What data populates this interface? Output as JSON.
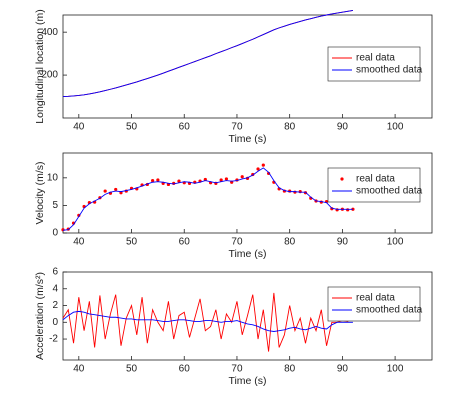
{
  "chart_data": [
    {
      "type": "line",
      "xlabel": "Time (s)",
      "ylabel": "Longitudinal location (m)",
      "xlim": [
        37,
        107
      ],
      "xticks": [
        40,
        50,
        60,
        70,
        80,
        90,
        100
      ],
      "ylim": [
        0,
        480
      ],
      "yticks": [
        200,
        400
      ],
      "legend": "upper right",
      "x": [
        37,
        38,
        39,
        40,
        41,
        42,
        43,
        44,
        45,
        46,
        47,
        48,
        49,
        50,
        51,
        52,
        53,
        54,
        55,
        56,
        57,
        58,
        59,
        60,
        61,
        62,
        63,
        64,
        65,
        66,
        67,
        68,
        69,
        70,
        71,
        72,
        73,
        74,
        75,
        76,
        77,
        78,
        79,
        80,
        81,
        82,
        83,
        84,
        85,
        86,
        87,
        88,
        89,
        90,
        91,
        92
      ],
      "series": [
        {
          "name": "real data",
          "color": "#ff0000",
          "style": "line",
          "values": [
            100,
            101,
            103,
            105,
            108,
            112,
            117,
            122,
            128,
            134,
            140,
            147,
            154,
            161,
            168,
            176,
            184,
            192,
            200,
            209,
            218,
            227,
            236,
            245,
            254,
            263,
            272,
            281,
            290,
            300,
            309,
            318,
            328,
            337,
            347,
            357,
            367,
            378,
            389,
            400,
            411,
            420,
            428,
            436,
            443,
            450,
            457,
            463,
            469,
            475,
            480,
            485,
            489,
            493,
            497,
            501
          ]
        },
        {
          "name": "smoothed data",
          "color": "#0000ff",
          "style": "line",
          "values": [
            100,
            101,
            103,
            105,
            108,
            112,
            117,
            122,
            128,
            134,
            140,
            147,
            154,
            161,
            168,
            176,
            184,
            192,
            200,
            209,
            218,
            227,
            236,
            245,
            254,
            263,
            272,
            281,
            290,
            300,
            309,
            318,
            328,
            337,
            347,
            357,
            367,
            378,
            389,
            400,
            411,
            420,
            428,
            436,
            443,
            450,
            457,
            463,
            469,
            475,
            480,
            485,
            489,
            493,
            497,
            501
          ]
        }
      ]
    },
    {
      "type": "line",
      "xlabel": "Time (s)",
      "ylabel": "Velocity (m/s)",
      "xlim": [
        37,
        107
      ],
      "xticks": [
        40,
        50,
        60,
        70,
        80,
        90,
        100
      ],
      "ylim": [
        0,
        14.5
      ],
      "yticks": [
        0,
        5,
        10
      ],
      "legend": "upper right",
      "x": [
        37,
        38,
        39,
        40,
        41,
        42,
        43,
        44,
        45,
        46,
        47,
        48,
        49,
        50,
        51,
        52,
        53,
        54,
        55,
        56,
        57,
        58,
        59,
        60,
        61,
        62,
        63,
        64,
        65,
        66,
        67,
        68,
        69,
        70,
        71,
        72,
        73,
        74,
        75,
        76,
        77,
        78,
        79,
        80,
        81,
        82,
        83,
        84,
        85,
        86,
        87,
        88,
        89,
        90,
        91,
        92
      ],
      "series": [
        {
          "name": "real data",
          "color": "#ff0000",
          "style": "markers",
          "values": [
            0.6,
            0.7,
            1.8,
            3.2,
            4.8,
            5.5,
            5.6,
            6.4,
            7.6,
            7.2,
            7.9,
            7.3,
            7.6,
            8.1,
            8.0,
            8.7,
            8.8,
            9.5,
            9.6,
            9.0,
            8.8,
            9.0,
            9.4,
            9.1,
            9.0,
            9.2,
            9.4,
            9.7,
            9.1,
            9.0,
            9.6,
            9.8,
            9.2,
            9.6,
            10.2,
            9.9,
            10.6,
            11.6,
            12.3,
            10.8,
            9.2,
            8.0,
            7.6,
            7.6,
            7.4,
            7.5,
            7.3,
            6.3,
            5.8,
            5.6,
            5.7,
            4.4,
            4.2,
            4.3,
            4.2,
            4.3
          ]
        },
        {
          "name": "smoothed data",
          "color": "#0000ff",
          "style": "line",
          "values": [
            0.5,
            0.6,
            1.5,
            3,
            4.5,
            5.3,
            5.8,
            6.3,
            7,
            7.4,
            7.6,
            7.5,
            7.7,
            7.9,
            8.2,
            8.5,
            8.9,
            9.2,
            9.3,
            9.2,
            9,
            8.9,
            9.1,
            9.3,
            9.2,
            9,
            9.2,
            9.5,
            9.3,
            9.1,
            9.3,
            9.5,
            9.4,
            9.5,
            9.8,
            10,
            10.5,
            11.2,
            11.8,
            11,
            9.5,
            8.2,
            7.7,
            7.5,
            7.5,
            7.4,
            7.4,
            6.5,
            5.8,
            5.7,
            5.5,
            4.5,
            4.3,
            4.3,
            4.3,
            4.3
          ]
        }
      ]
    },
    {
      "type": "line",
      "xlabel": "Time (s)",
      "ylabel": "Acceleration (m/s²)",
      "xlim": [
        37,
        107
      ],
      "xticks": [
        40,
        50,
        60,
        70,
        80,
        90,
        100
      ],
      "ylim": [
        -4.5,
        6
      ],
      "yticks": [
        -2,
        0,
        2,
        4,
        6
      ],
      "legend": "upper right",
      "x": [
        37,
        38,
        39,
        40,
        41,
        42,
        43,
        44,
        45,
        46,
        47,
        48,
        49,
        50,
        51,
        52,
        53,
        54,
        55,
        56,
        57,
        58,
        59,
        60,
        61,
        62,
        63,
        64,
        65,
        66,
        67,
        68,
        69,
        70,
        71,
        72,
        73,
        74,
        75,
        76,
        77,
        78,
        79,
        80,
        81,
        82,
        83,
        84,
        85,
        86,
        87,
        88,
        89,
        90,
        91,
        92
      ],
      "series": [
        {
          "name": "real data",
          "color": "#ff0000",
          "style": "line",
          "values": [
            0.5,
            1.5,
            -2.5,
            3,
            -1,
            2.5,
            -3,
            3.2,
            -2,
            1,
            3.3,
            -2.8,
            0.5,
            2,
            -1.5,
            3,
            -2.5,
            1.5,
            0,
            -1,
            2.5,
            -2,
            0.8,
            1.2,
            -1.8,
            0.5,
            2.8,
            -1,
            -0.5,
            1.5,
            -2,
            1,
            0,
            2.5,
            -1.5,
            0.8,
            3.3,
            -2,
            1.5,
            -3.5,
            3.5,
            -3,
            -1.5,
            2,
            -1,
            0.5,
            -2.5,
            0.5,
            -1,
            1.5,
            -2.8,
            0,
            0,
            0.2,
            0.1,
            0.6
          ]
        },
        {
          "name": "smoothed data",
          "color": "#0000ff",
          "style": "line",
          "values": [
            0.3,
            0.8,
            1.2,
            1.3,
            1.2,
            1.0,
            0.9,
            0.8,
            0.7,
            0.6,
            0.6,
            0.5,
            0.4,
            0.4,
            0.3,
            0.3,
            0.3,
            0.3,
            0.2,
            0.1,
            0.1,
            0.2,
            0.3,
            0.3,
            0.2,
            0.1,
            0.1,
            0.2,
            0.2,
            0.1,
            0,
            0.1,
            0.1,
            0.2,
            0,
            -0.2,
            -0.3,
            -0.5,
            -0.8,
            -1,
            -1.1,
            -1,
            -0.9,
            -0.7,
            -0.6,
            -0.8,
            -0.9,
            -0.7,
            -0.5,
            -0.7,
            -0.8,
            -0.3,
            0,
            0,
            0,
            0
          ]
        }
      ]
    }
  ]
}
